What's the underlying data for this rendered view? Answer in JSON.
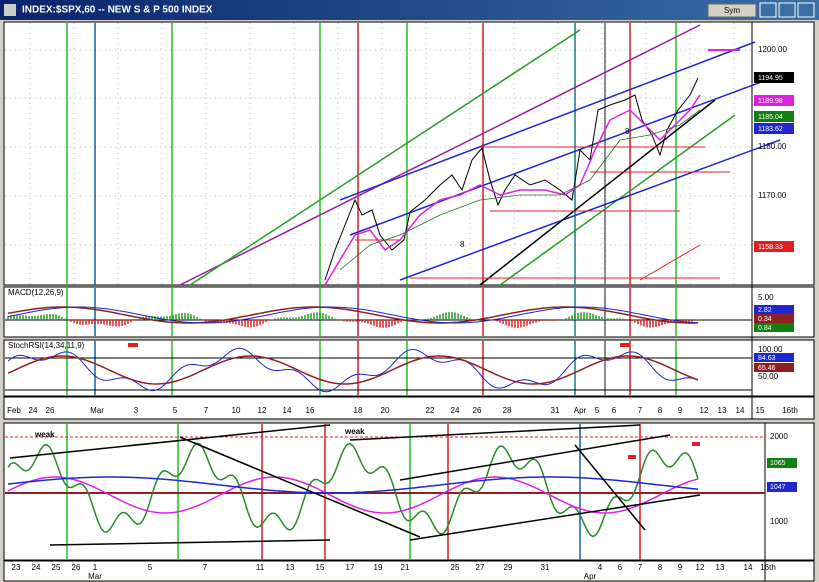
{
  "window": {
    "title": "INDEX:$SPX,60 -- NEW S & P 500 INDEX",
    "menu": "Sym"
  },
  "price_panel": {
    "labels": [
      "1200.00",
      "1180.00",
      "1170.00"
    ],
    "flags": [
      "1194.95",
      "1189.98",
      "1185.04",
      "1183.62",
      "1158.33"
    ],
    "annotations": [
      "8",
      "8"
    ]
  },
  "macd_panel": {
    "title": "MACD(12,26,9)",
    "labels": [
      "5.00"
    ],
    "flags": [
      "2.82",
      "0.34",
      "0.84"
    ]
  },
  "stoch_panel": {
    "title": "StochRSI(14,34,11,9)",
    "labels": [
      "100.00",
      "50.00"
    ],
    "flags": [
      "84.63",
      "65.46"
    ]
  },
  "date_axis": {
    "months": [
      "Feb",
      "Mar",
      "Apr"
    ],
    "ticks": [
      "24",
      "26",
      "3",
      "5",
      "7",
      "10",
      "12",
      "14",
      "16",
      "18",
      "20",
      "22",
      "24",
      "26",
      "28",
      "31",
      "5",
      "6",
      "7",
      "8",
      "9",
      "12",
      "13",
      "14",
      "15",
      "16th"
    ]
  },
  "lower_panel": {
    "annotations": [
      "weak",
      "weak"
    ],
    "labels": [
      "2000",
      "1000"
    ],
    "flags": [
      "1065",
      "1047"
    ]
  },
  "lower_date_axis": {
    "months": [
      "Mar",
      "Apr"
    ],
    "ticks": [
      "23",
      "24",
      "25",
      "26",
      "1",
      "5",
      "7",
      "11",
      "13",
      "15",
      "17",
      "19",
      "21",
      "25",
      "27",
      "29",
      "31",
      "4",
      "6",
      "7",
      "8",
      "9",
      "12",
      "13",
      "14",
      "16th"
    ]
  }
}
